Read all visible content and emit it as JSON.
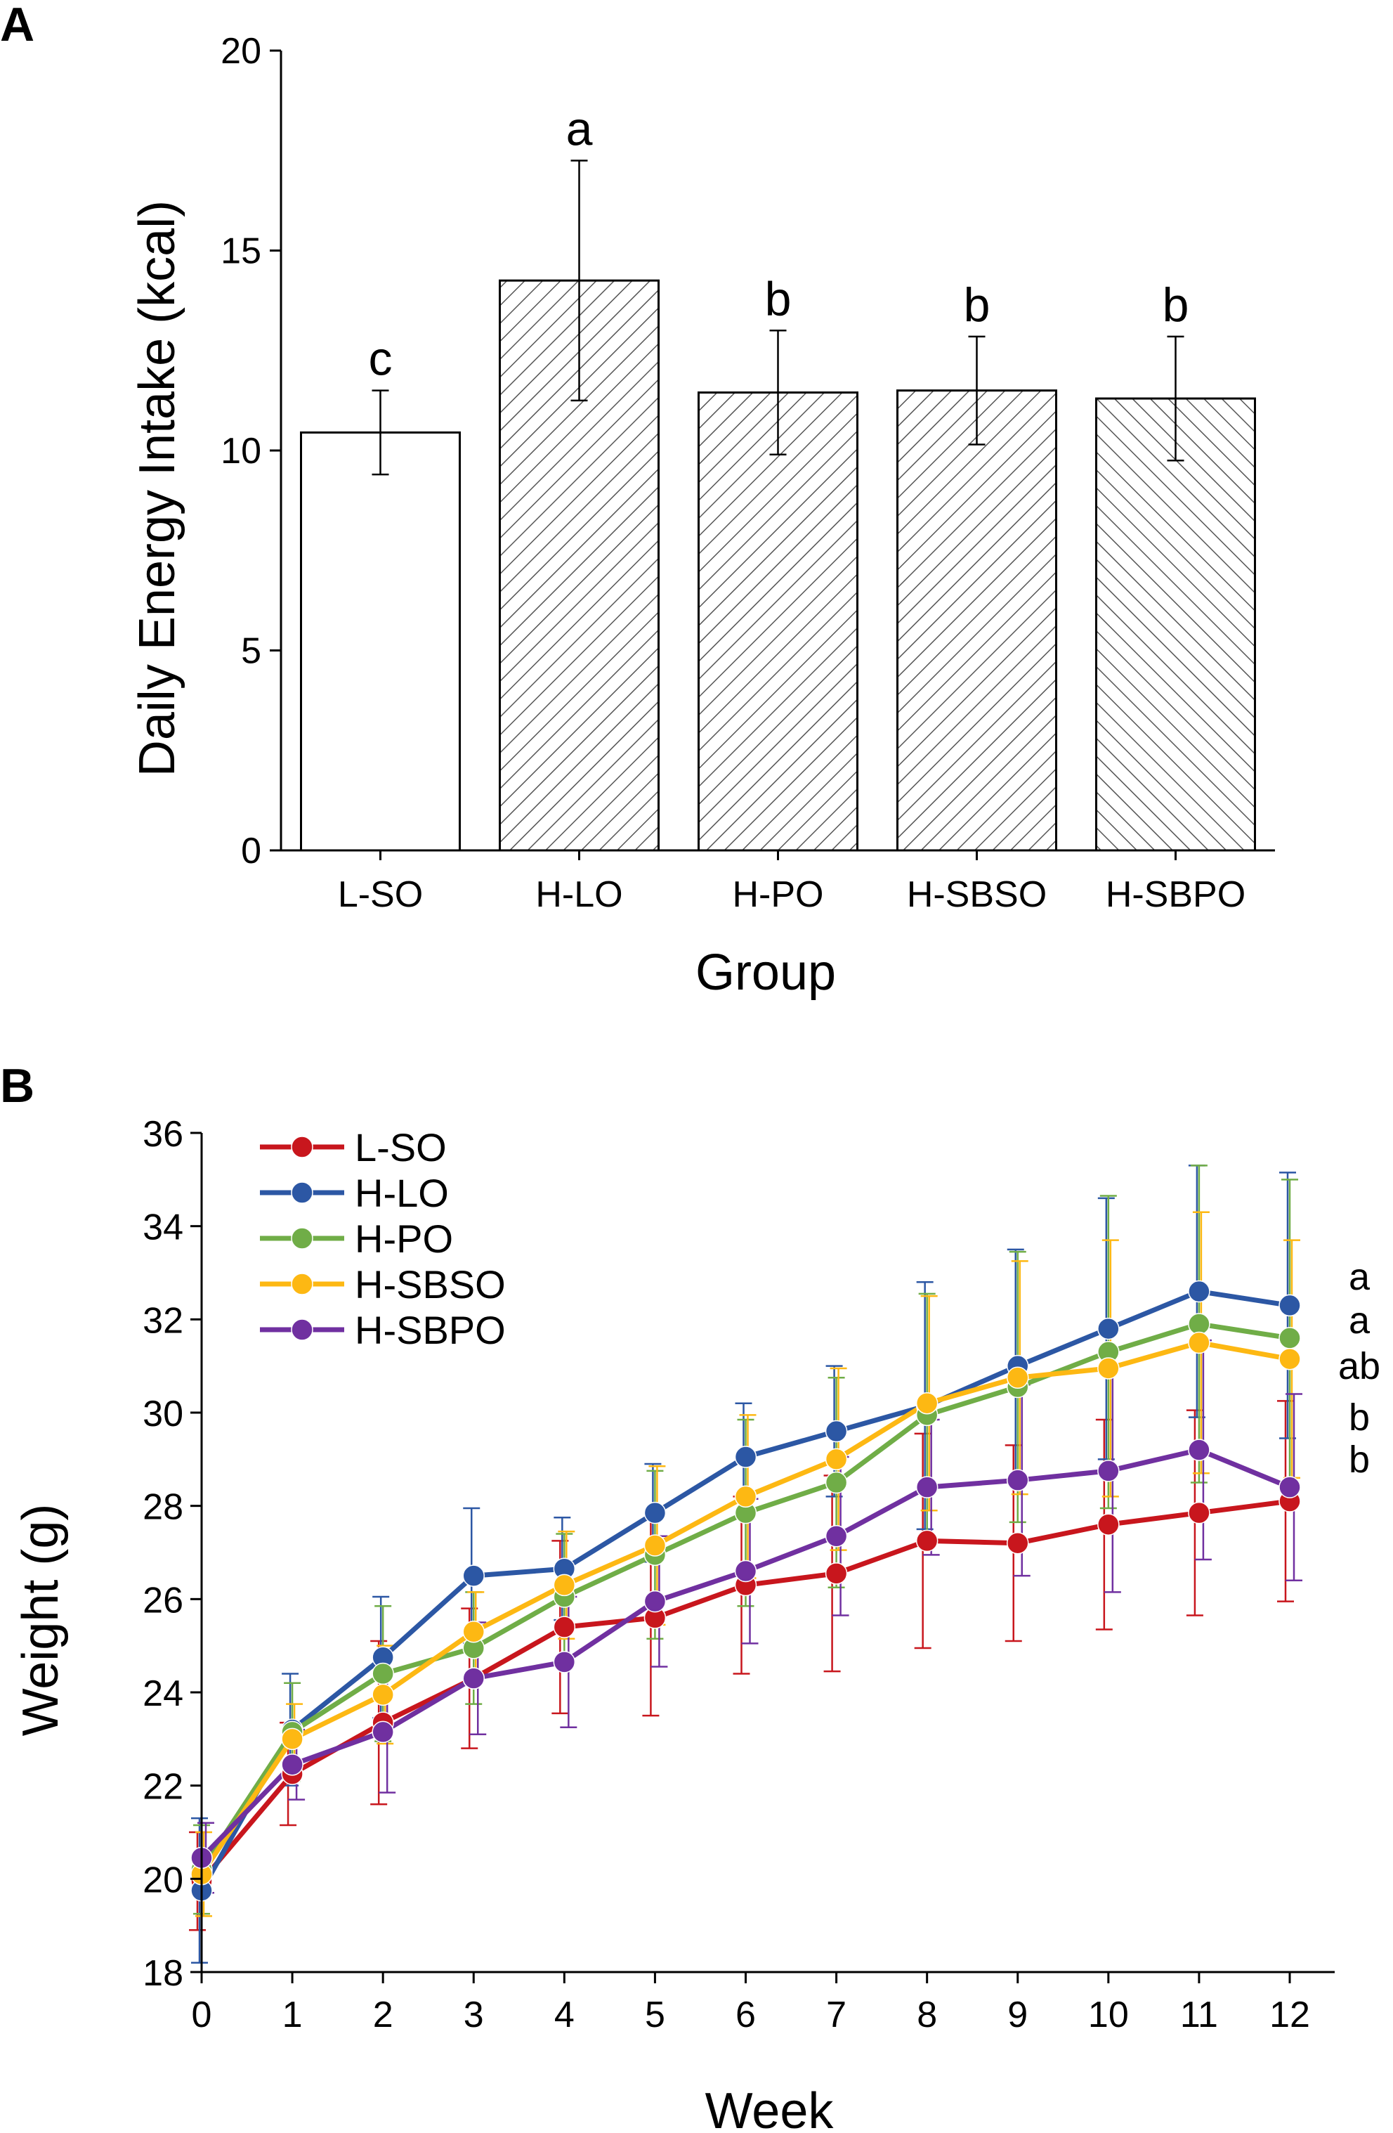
{
  "panels": {
    "a_label": "A",
    "b_label": "B"
  },
  "chart_data": [
    {
      "type": "bar",
      "title": "",
      "xlabel": "Group",
      "ylabel": "Daily Energy Intake (kcal)",
      "ylim": [
        0,
        20
      ],
      "yticks": [
        0,
        5,
        10,
        15,
        20
      ],
      "ytick_labels": [
        "0",
        "5",
        "10",
        "15",
        "20"
      ],
      "grid": false,
      "categories": [
        "L-SO",
        "H-LO",
        "H-PO",
        "H-SBSO",
        "H-SBPO"
      ],
      "values": [
        10.45,
        14.25,
        11.45,
        11.5,
        11.3
      ],
      "errors": [
        1.05,
        3.0,
        1.55,
        1.35,
        1.55
      ],
      "significance": [
        "c",
        "a",
        "b",
        "b",
        "b"
      ],
      "fill_patterns": [
        "none",
        "hatch-right",
        "hatch-right",
        "hatch-right",
        "hatch-left"
      ]
    },
    {
      "type": "line",
      "title": "",
      "xlabel": "Week",
      "ylabel": "Weight (g)",
      "xlim": [
        0,
        12
      ],
      "ylim": [
        18,
        36
      ],
      "x": [
        0,
        1,
        2,
        3,
        4,
        5,
        6,
        7,
        8,
        9,
        10,
        11,
        12
      ],
      "x_tick_labels": [
        "0",
        "1",
        "2",
        "3",
        "4",
        "5",
        "6",
        "7",
        "8",
        "9",
        "10",
        "11",
        "12"
      ],
      "yticks": [
        18,
        20,
        22,
        24,
        26,
        28,
        30,
        32,
        34,
        36
      ],
      "ytick_labels": [
        "18",
        "20",
        "22",
        "24",
        "26",
        "28",
        "30",
        "32",
        "34",
        "36"
      ],
      "grid": false,
      "legend_position": "top-left",
      "series": [
        {
          "name": "L-SO",
          "color": "#c8161d",
          "values": [
            19.95,
            22.25,
            23.35,
            24.3,
            25.4,
            25.6,
            26.3,
            26.55,
            27.25,
            27.2,
            27.6,
            27.85,
            28.1
          ],
          "errors": [
            1.05,
            1.1,
            1.75,
            1.5,
            1.85,
            2.1,
            1.9,
            2.1,
            2.3,
            2.1,
            2.25,
            2.2,
            2.15
          ],
          "significance": "b"
        },
        {
          "name": "H-LO",
          "color": "#2c57a4",
          "values": [
            19.75,
            23.2,
            24.75,
            26.5,
            26.65,
            27.85,
            29.05,
            29.6,
            30.15,
            31.0,
            31.8,
            32.6,
            32.3
          ],
          "errors": [
            1.55,
            1.2,
            1.3,
            1.45,
            1.1,
            1.05,
            1.15,
            1.4,
            2.65,
            2.5,
            2.8,
            2.7,
            2.85
          ],
          "significance": "a"
        },
        {
          "name": "H-PO",
          "color": "#70ad47",
          "values": [
            20.2,
            23.15,
            24.4,
            24.95,
            26.05,
            26.95,
            27.85,
            28.5,
            29.95,
            30.55,
            31.3,
            31.9,
            31.6
          ],
          "errors": [
            0.95,
            1.05,
            1.45,
            1.2,
            1.35,
            1.8,
            2.0,
            2.25,
            2.6,
            2.9,
            3.35,
            3.4,
            3.4
          ],
          "significance": "a"
        },
        {
          "name": "H-SBSO",
          "color": "#fdb813",
          "values": [
            20.1,
            23.0,
            23.95,
            25.3,
            26.3,
            27.15,
            28.2,
            29.0,
            30.2,
            30.75,
            30.95,
            31.5,
            31.15
          ],
          "errors": [
            0.9,
            0.75,
            1.05,
            0.85,
            1.15,
            1.7,
            1.75,
            1.95,
            2.3,
            2.5,
            2.75,
            2.8,
            2.55
          ],
          "significance": "ab"
        },
        {
          "name": "H-SBPO",
          "color": "#7030a0",
          "values": [
            20.45,
            22.45,
            23.15,
            24.3,
            24.65,
            25.95,
            26.6,
            27.35,
            28.4,
            28.55,
            28.75,
            29.2,
            28.4
          ],
          "errors": [
            0.75,
            0.75,
            1.3,
            1.2,
            1.4,
            1.4,
            1.55,
            1.7,
            1.45,
            2.05,
            2.6,
            2.35,
            2.0
          ],
          "significance": "b"
        }
      ]
    }
  ]
}
